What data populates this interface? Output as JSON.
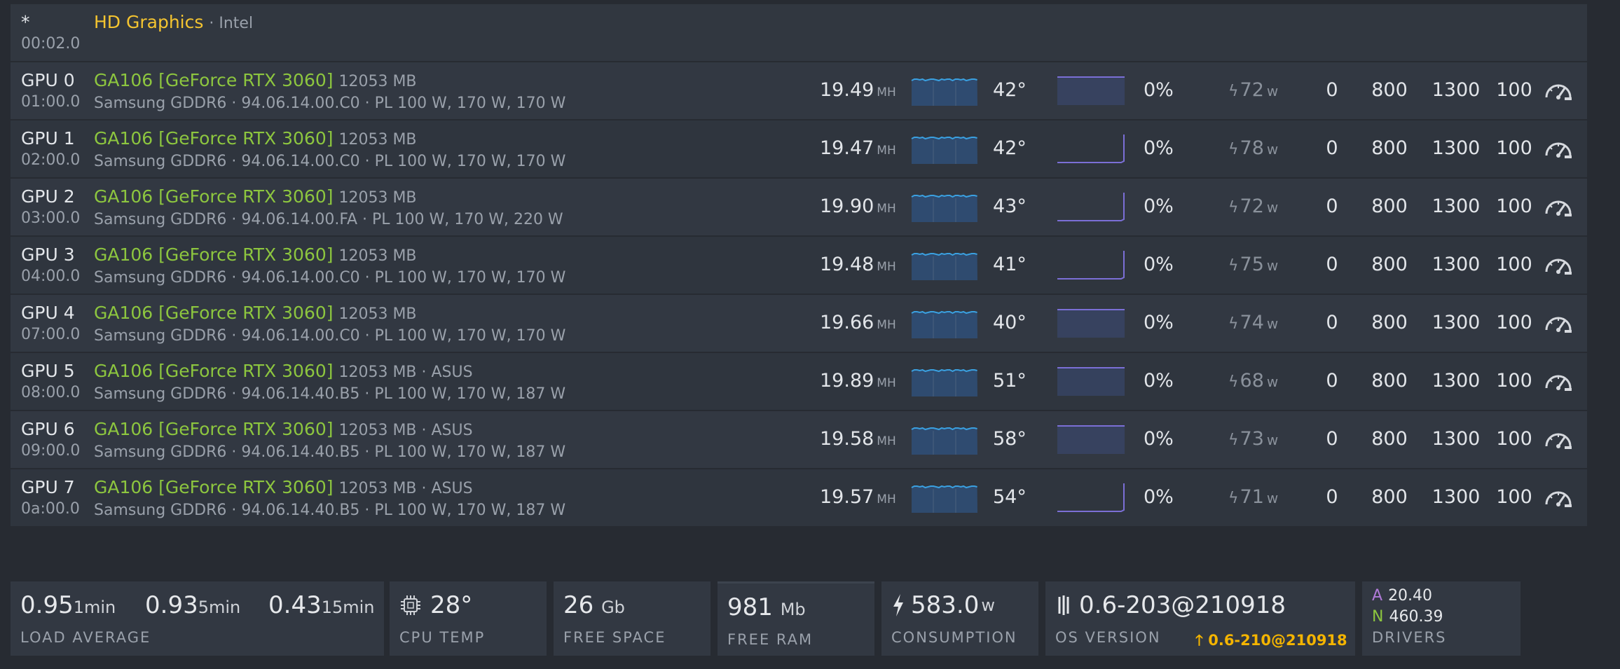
{
  "igpu": {
    "id": "*",
    "bus": "00:02.0",
    "model": "HD Graphics",
    "vendor": "· Intel"
  },
  "hash_unit": "MH",
  "power_unit": "w",
  "gpus": [
    {
      "name": "GPU 0",
      "bus": "01:00.0",
      "model": "GA106 [GeForce RTX 3060]",
      "mem": "12053 MB",
      "details": "Samsung GDDR6 · 94.06.14.00.C0 · PL 100 W, 170 W, 170 W",
      "hash": "19.49",
      "temp": "42°",
      "fan": "0%",
      "power": "72",
      "core": "0",
      "mclk": "800",
      "cclk": "1300",
      "pl": "100",
      "fan_history": "flat"
    },
    {
      "name": "GPU 1",
      "bus": "02:00.0",
      "model": "GA106 [GeForce RTX 3060]",
      "mem": "12053 MB",
      "details": "Samsung GDDR6 · 94.06.14.00.C0 · PL 100 W, 170 W, 170 W",
      "hash": "19.47",
      "temp": "42°",
      "fan": "0%",
      "power": "78",
      "core": "0",
      "mclk": "800",
      "cclk": "1300",
      "pl": "100",
      "fan_history": "step"
    },
    {
      "name": "GPU 2",
      "bus": "03:00.0",
      "model": "GA106 [GeForce RTX 3060]",
      "mem": "12053 MB",
      "details": "Samsung GDDR6 · 94.06.14.00.FA · PL 100 W, 170 W, 220 W",
      "hash": "19.90",
      "temp": "43°",
      "fan": "0%",
      "power": "72",
      "core": "0",
      "mclk": "800",
      "cclk": "1300",
      "pl": "100",
      "fan_history": "step"
    },
    {
      "name": "GPU 3",
      "bus": "04:00.0",
      "model": "GA106 [GeForce RTX 3060]",
      "mem": "12053 MB",
      "details": "Samsung GDDR6 · 94.06.14.00.C0 · PL 100 W, 170 W, 170 W",
      "hash": "19.48",
      "temp": "41°",
      "fan": "0%",
      "power": "75",
      "core": "0",
      "mclk": "800",
      "cclk": "1300",
      "pl": "100",
      "fan_history": "step"
    },
    {
      "name": "GPU 4",
      "bus": "07:00.0",
      "model": "GA106 [GeForce RTX 3060]",
      "mem": "12053 MB",
      "details": "Samsung GDDR6 · 94.06.14.00.C0 · PL 100 W, 170 W, 170 W",
      "hash": "19.66",
      "temp": "40°",
      "fan": "0%",
      "power": "74",
      "core": "0",
      "mclk": "800",
      "cclk": "1300",
      "pl": "100",
      "fan_history": "flat"
    },
    {
      "name": "GPU 5",
      "bus": "08:00.0",
      "model": "GA106 [GeForce RTX 3060]",
      "mem": "12053 MB · ASUS",
      "details": "Samsung GDDR6 · 94.06.14.40.B5 · PL 100 W, 170 W, 187 W",
      "hash": "19.89",
      "temp": "51°",
      "fan": "0%",
      "power": "68",
      "core": "0",
      "mclk": "800",
      "cclk": "1300",
      "pl": "100",
      "fan_history": "flat"
    },
    {
      "name": "GPU 6",
      "bus": "09:00.0",
      "model": "GA106 [GeForce RTX 3060]",
      "mem": "12053 MB · ASUS",
      "details": "Samsung GDDR6 · 94.06.14.40.B5 · PL 100 W, 170 W, 187 W",
      "hash": "19.58",
      "temp": "58°",
      "fan": "0%",
      "power": "73",
      "core": "0",
      "mclk": "800",
      "cclk": "1300",
      "pl": "100",
      "fan_history": "flat"
    },
    {
      "name": "GPU 7",
      "bus": "0a:00.0",
      "model": "GA106 [GeForce RTX 3060]",
      "mem": "12053 MB · ASUS",
      "details": "Samsung GDDR6 · 94.06.14.40.B5 · PL 100 W, 170 W, 187 W",
      "hash": "19.57",
      "temp": "54°",
      "fan": "0%",
      "power": "71",
      "core": "0",
      "mclk": "800",
      "cclk": "1300",
      "pl": "100",
      "fan_history": "step"
    }
  ],
  "stats": {
    "load_average": {
      "label": "LOAD AVERAGE",
      "v1": "0.95",
      "u1": "1min",
      "v5": "0.93",
      "u5": "5min",
      "v15": "0.43",
      "u15": "15min"
    },
    "cpu_temp": {
      "label": "CPU TEMP",
      "value": "28°"
    },
    "free_space": {
      "label": "FREE SPACE",
      "value": "26",
      "unit": "Gb"
    },
    "free_ram": {
      "label": "FREE RAM",
      "value": "981",
      "unit": "Mb"
    },
    "consumption": {
      "label": "CONSUMPTION",
      "value": "583.0",
      "unit": "w"
    },
    "os_version": {
      "label": "OS VERSION",
      "value": "0.6-203@210918",
      "update": "0.6-210@210918"
    },
    "drivers": {
      "label": "DRIVERS",
      "amd_key": "A",
      "amd": "20.40",
      "nvidia_key": "N",
      "nvidia": "460.39"
    }
  },
  "colors": {
    "accent_green": "#8dc63f",
    "intel_yellow": "#f4c430",
    "update_orange": "#f4b400",
    "hash_blue": "#3aa0e0",
    "fan_purple": "#7b6fd6"
  }
}
